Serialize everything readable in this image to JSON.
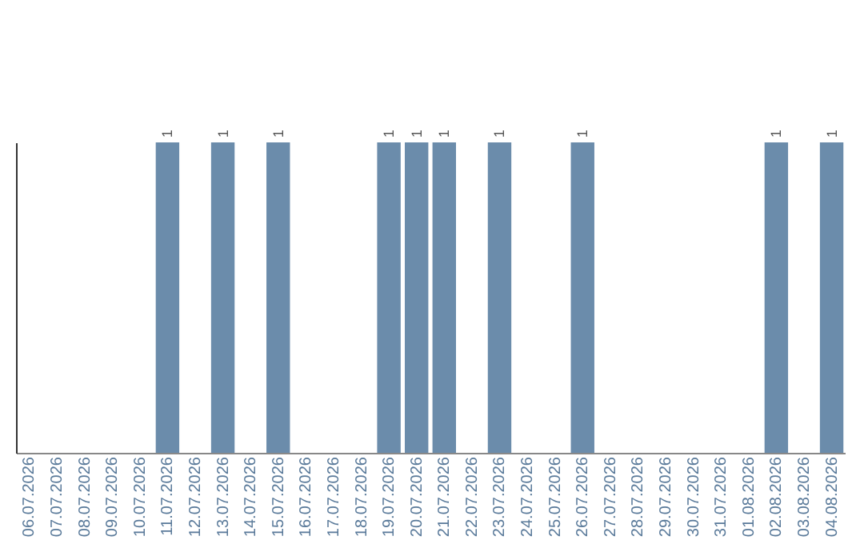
{
  "chart_data": {
    "type": "bar",
    "categories": [
      "06.07.2026",
      "07.07.2026",
      "08.07.2026",
      "09.07.2026",
      "10.07.2026",
      "11.07.2026",
      "12.07.2026",
      "13.07.2026",
      "14.07.2026",
      "15.07.2026",
      "16.07.2026",
      "17.07.2026",
      "18.07.2026",
      "19.07.2026",
      "20.07.2026",
      "21.07.2026",
      "22.07.2026",
      "23.07.2026",
      "24.07.2026",
      "25.07.2026",
      "26.07.2026",
      "27.07.2026",
      "28.07.2026",
      "29.07.2026",
      "30.07.2026",
      "31.07.2026",
      "01.08.2026",
      "02.08.2026",
      "03.08.2026",
      "04.08.2026"
    ],
    "values": [
      0,
      0,
      0,
      0,
      0,
      1,
      0,
      1,
      0,
      1,
      0,
      0,
      0,
      1,
      1,
      1,
      0,
      1,
      0,
      0,
      1,
      0,
      0,
      0,
      0,
      0,
      0,
      1,
      0,
      1
    ],
    "value_labels": [
      null,
      null,
      null,
      null,
      null,
      "1",
      null,
      "1",
      null,
      "1",
      null,
      null,
      null,
      "1",
      "1",
      "1",
      null,
      "1",
      null,
      null,
      "1",
      null,
      null,
      null,
      null,
      null,
      null,
      "1",
      null,
      "1"
    ],
    "color": "#6b8cab",
    "tick_labels": "x",
    "grid": false
  }
}
